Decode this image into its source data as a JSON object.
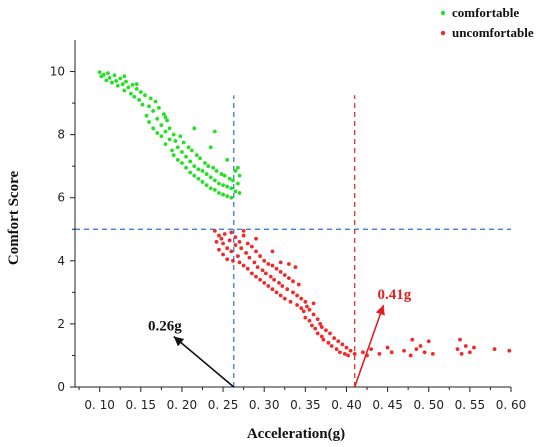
{
  "chart_data": {
    "type": "scatter",
    "xlabel": "Acceleration(g)",
    "ylabel": "Comfort Score",
    "xlim": [
      0.07,
      0.6
    ],
    "ylim": [
      0,
      11
    ],
    "x_ticks": [
      "0. 10",
      "0. 15",
      "0. 20",
      "0. 25",
      "0. 30",
      "0. 35",
      "0. 40",
      "0. 45",
      "0. 50",
      "0. 55",
      "0. 60"
    ],
    "x_tick_values": [
      0.1,
      0.15,
      0.2,
      0.25,
      0.3,
      0.35,
      0.4,
      0.45,
      0.5,
      0.55,
      0.6
    ],
    "y_ticks": [
      0,
      2,
      4,
      6,
      8,
      10
    ],
    "grid": false,
    "legend_position": "top-right",
    "series": [
      {
        "name": "comfortable",
        "color": "#22e022",
        "points": [
          [
            0.1,
            9.98
          ],
          [
            0.102,
            9.85
          ],
          [
            0.105,
            9.9
          ],
          [
            0.108,
            9.72
          ],
          [
            0.11,
            9.95
          ],
          [
            0.112,
            9.8
          ],
          [
            0.115,
            9.65
          ],
          [
            0.118,
            9.88
          ],
          [
            0.12,
            9.7
          ],
          [
            0.122,
            9.55
          ],
          [
            0.125,
            9.78
          ],
          [
            0.128,
            9.6
          ],
          [
            0.13,
            9.4
          ],
          [
            0.132,
            9.68
          ],
          [
            0.135,
            9.5
          ],
          [
            0.138,
            9.3
          ],
          [
            0.14,
            9.58
          ],
          [
            0.142,
            9.2
          ],
          [
            0.145,
            9.45
          ],
          [
            0.148,
            9.1
          ],
          [
            0.15,
            9.35
          ],
          [
            0.152,
            8.95
          ],
          [
            0.155,
            9.25
          ],
          [
            0.157,
            8.6
          ],
          [
            0.16,
            8.4
          ],
          [
            0.16,
            8.9
          ],
          [
            0.162,
            9.15
          ],
          [
            0.165,
            8.2
          ],
          [
            0.165,
            8.75
          ],
          [
            0.168,
            9.05
          ],
          [
            0.17,
            8.5
          ],
          [
            0.17,
            8.05
          ],
          [
            0.172,
            8.85
          ],
          [
            0.175,
            8.3
          ],
          [
            0.175,
            7.95
          ],
          [
            0.178,
            8.65
          ],
          [
            0.18,
            8.1
          ],
          [
            0.18,
            7.7
          ],
          [
            0.182,
            8.45
          ],
          [
            0.185,
            7.85
          ],
          [
            0.185,
            8.2
          ],
          [
            0.188,
            7.5
          ],
          [
            0.19,
            8.0
          ],
          [
            0.19,
            7.35
          ],
          [
            0.192,
            7.8
          ],
          [
            0.195,
            7.2
          ],
          [
            0.195,
            7.6
          ],
          [
            0.198,
            7.95
          ],
          [
            0.2,
            7.1
          ],
          [
            0.2,
            7.45
          ],
          [
            0.202,
            7.75
          ],
          [
            0.205,
            6.95
          ],
          [
            0.205,
            7.3
          ],
          [
            0.208,
            7.6
          ],
          [
            0.21,
            6.8
          ],
          [
            0.21,
            7.15
          ],
          [
            0.212,
            7.5
          ],
          [
            0.215,
            6.7
          ],
          [
            0.215,
            7.0
          ],
          [
            0.218,
            7.35
          ],
          [
            0.22,
            6.6
          ],
          [
            0.22,
            6.9
          ],
          [
            0.222,
            7.25
          ],
          [
            0.225,
            6.5
          ],
          [
            0.225,
            6.85
          ],
          [
            0.228,
            7.1
          ],
          [
            0.23,
            6.4
          ],
          [
            0.23,
            6.75
          ],
          [
            0.232,
            7.0
          ],
          [
            0.235,
            6.3
          ],
          [
            0.235,
            6.65
          ],
          [
            0.238,
            6.95
          ],
          [
            0.24,
            6.25
          ],
          [
            0.24,
            6.55
          ],
          [
            0.242,
            6.85
          ],
          [
            0.245,
            6.15
          ],
          [
            0.245,
            6.45
          ],
          [
            0.248,
            6.75
          ],
          [
            0.25,
            6.1
          ],
          [
            0.25,
            6.4
          ],
          [
            0.252,
            6.7
          ],
          [
            0.255,
            6.05
          ],
          [
            0.255,
            6.35
          ],
          [
            0.258,
            6.6
          ],
          [
            0.26,
            6.0
          ],
          [
            0.26,
            6.3
          ],
          [
            0.262,
            6.55
          ],
          [
            0.265,
            6.2
          ],
          [
            0.265,
            6.85
          ],
          [
            0.268,
            6.45
          ],
          [
            0.27,
            6.15
          ],
          [
            0.27,
            6.7
          ],
          [
            0.268,
            6.95
          ],
          [
            0.215,
            8.2
          ],
          [
            0.24,
            8.1
          ],
          [
            0.18,
            8.55
          ],
          [
            0.13,
            9.85
          ],
          [
            0.145,
            9.6
          ],
          [
            0.235,
            7.6
          ],
          [
            0.255,
            7.2
          ]
        ]
      },
      {
        "name": "uncomfortable",
        "color": "#ee2a2a",
        "points": [
          [
            0.24,
            4.95
          ],
          [
            0.242,
            4.6
          ],
          [
            0.245,
            4.8
          ],
          [
            0.245,
            4.35
          ],
          [
            0.248,
            4.7
          ],
          [
            0.25,
            4.2
          ],
          [
            0.25,
            4.55
          ],
          [
            0.252,
            4.85
          ],
          [
            0.255,
            4.4
          ],
          [
            0.255,
            4.05
          ],
          [
            0.258,
            4.65
          ],
          [
            0.26,
            4.9
          ],
          [
            0.26,
            4.3
          ],
          [
            0.262,
            4.0
          ],
          [
            0.265,
            4.5
          ],
          [
            0.265,
            4.75
          ],
          [
            0.268,
            4.15
          ],
          [
            0.27,
            4.6
          ],
          [
            0.27,
            3.95
          ],
          [
            0.272,
            4.4
          ],
          [
            0.275,
            4.8
          ],
          [
            0.275,
            3.85
          ],
          [
            0.278,
            4.25
          ],
          [
            0.28,
            4.55
          ],
          [
            0.28,
            3.75
          ],
          [
            0.282,
            4.1
          ],
          [
            0.285,
            4.45
          ],
          [
            0.285,
            3.6
          ],
          [
            0.288,
            3.95
          ],
          [
            0.29,
            4.3
          ],
          [
            0.29,
            3.5
          ],
          [
            0.292,
            3.8
          ],
          [
            0.295,
            4.15
          ],
          [
            0.295,
            3.4
          ],
          [
            0.298,
            3.7
          ],
          [
            0.3,
            4.0
          ],
          [
            0.3,
            3.3
          ],
          [
            0.302,
            3.6
          ],
          [
            0.305,
            3.9
          ],
          [
            0.305,
            3.2
          ],
          [
            0.308,
            3.5
          ],
          [
            0.31,
            3.85
          ],
          [
            0.31,
            3.1
          ],
          [
            0.312,
            3.4
          ],
          [
            0.315,
            3.75
          ],
          [
            0.315,
            3.0
          ],
          [
            0.318,
            3.3
          ],
          [
            0.32,
            3.65
          ],
          [
            0.32,
            2.9
          ],
          [
            0.322,
            3.2
          ],
          [
            0.325,
            3.55
          ],
          [
            0.325,
            2.8
          ],
          [
            0.328,
            3.1
          ],
          [
            0.33,
            3.45
          ],
          [
            0.33,
            3.9
          ],
          [
            0.332,
            2.7
          ],
          [
            0.335,
            3.0
          ],
          [
            0.335,
            3.35
          ],
          [
            0.338,
            3.8
          ],
          [
            0.34,
            2.6
          ],
          [
            0.34,
            2.9
          ],
          [
            0.342,
            3.25
          ],
          [
            0.345,
            2.5
          ],
          [
            0.345,
            2.8
          ],
          [
            0.348,
            2.4
          ],
          [
            0.35,
            2.7
          ],
          [
            0.35,
            2.2
          ],
          [
            0.352,
            2.55
          ],
          [
            0.355,
            2.1
          ],
          [
            0.355,
            2.45
          ],
          [
            0.358,
            1.95
          ],
          [
            0.36,
            2.3
          ],
          [
            0.36,
            2.65
          ],
          [
            0.362,
            1.85
          ],
          [
            0.365,
            2.15
          ],
          [
            0.365,
            1.7
          ],
          [
            0.368,
            2.0
          ],
          [
            0.37,
            1.6
          ],
          [
            0.37,
            1.9
          ],
          [
            0.372,
            1.5
          ],
          [
            0.375,
            1.8
          ],
          [
            0.378,
            1.4
          ],
          [
            0.38,
            1.7
          ],
          [
            0.382,
            1.3
          ],
          [
            0.385,
            1.55
          ],
          [
            0.388,
            1.2
          ],
          [
            0.39,
            1.45
          ],
          [
            0.392,
            1.1
          ],
          [
            0.395,
            1.35
          ],
          [
            0.398,
            1.05
          ],
          [
            0.4,
            1.25
          ],
          [
            0.402,
            1.0
          ],
          [
            0.405,
            1.15
          ],
          [
            0.41,
            1.05
          ],
          [
            0.42,
            1.1
          ],
          [
            0.425,
            1.0
          ],
          [
            0.43,
            1.2
          ],
          [
            0.44,
            1.05
          ],
          [
            0.45,
            1.25
          ],
          [
            0.455,
            1.1
          ],
          [
            0.47,
            1.15
          ],
          [
            0.478,
            1.0
          ],
          [
            0.48,
            1.5
          ],
          [
            0.485,
            1.2
          ],
          [
            0.49,
            1.3
          ],
          [
            0.495,
            1.1
          ],
          [
            0.5,
            1.45
          ],
          [
            0.505,
            1.05
          ],
          [
            0.535,
            1.2
          ],
          [
            0.538,
            1.5
          ],
          [
            0.54,
            1.05
          ],
          [
            0.545,
            1.3
          ],
          [
            0.55,
            1.1
          ],
          [
            0.555,
            1.25
          ],
          [
            0.58,
            1.2
          ],
          [
            0.598,
            1.15
          ],
          [
            0.31,
            4.3
          ],
          [
            0.29,
            4.7
          ],
          [
            0.32,
            3.95
          ],
          [
            0.275,
            4.95
          ]
        ]
      }
    ],
    "reference_lines": [
      {
        "orientation": "vertical",
        "value": 0.263,
        "color": "#2b6fd8",
        "from": 0,
        "to": 9.25
      },
      {
        "orientation": "vertical",
        "value": 0.41,
        "color": "#e02020",
        "from": 0,
        "to": 9.25
      },
      {
        "orientation": "horizontal",
        "value": 5.0,
        "color": "#2b6fd8"
      }
    ],
    "annotations": [
      {
        "text": "0.26g",
        "color": "#111111",
        "x_from": 0.263,
        "y_from": 0,
        "x_to": 0.19,
        "y_to": 1.6
      },
      {
        "text": "0.41g",
        "color": "#e02020",
        "x_from": 0.41,
        "y_from": 0,
        "x_to": 0.445,
        "y_to": 2.6
      }
    ]
  }
}
